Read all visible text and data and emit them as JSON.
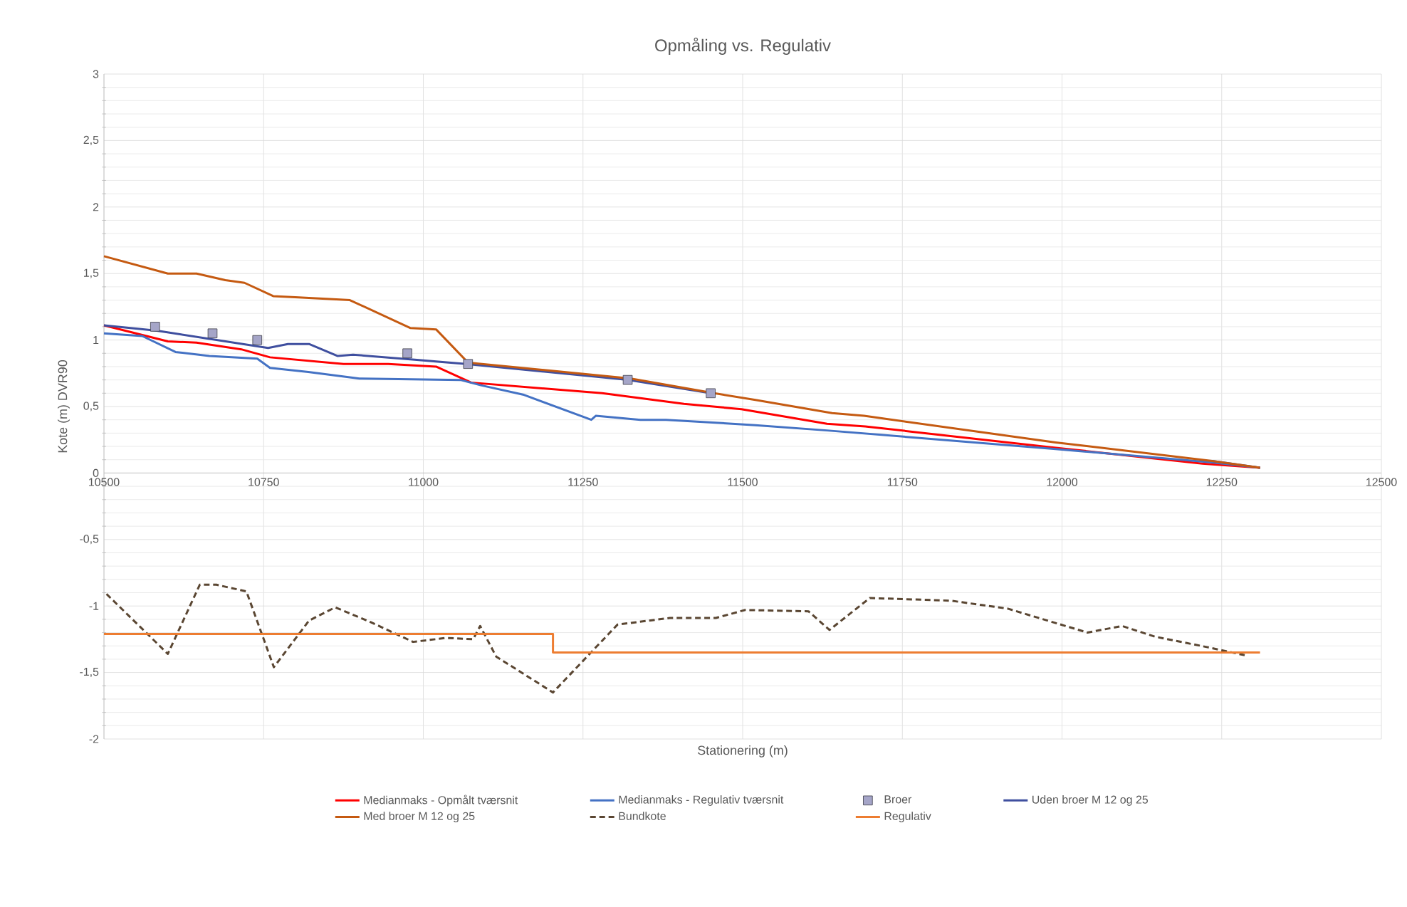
{
  "chart_data": {
    "type": "line",
    "title": "Opmåling vs. Regulativ",
    "xlabel": "Stationering (m)",
    "ylabel": "Kote (m) DVR90",
    "xlim": [
      10500,
      12500
    ],
    "xticks": [
      10500,
      10750,
      11000,
      11250,
      11500,
      11750,
      12000,
      12250,
      12500
    ],
    "ylim": [
      -2,
      3
    ],
    "yticks": [
      {
        "value": -2,
        "label": "-2"
      },
      {
        "value": -1.5,
        "label": "-1,5"
      },
      {
        "value": -1,
        "label": "-1"
      },
      {
        "value": -0.5,
        "label": "-0,5"
      },
      {
        "value": 0,
        "label": "0"
      },
      {
        "value": 0.5,
        "label": "0,5"
      },
      {
        "value": 1,
        "label": "1"
      },
      {
        "value": 1.5,
        "label": "1,5"
      },
      {
        "value": 2,
        "label": "2"
      },
      {
        "value": 2.5,
        "label": "2,5"
      },
      {
        "value": 3,
        "label": "3"
      }
    ],
    "grid": true,
    "legend": "bottom",
    "marker": "none",
    "line_style": "solid",
    "series": [
      {
        "name": "Medianmaks - Opmålt tværsnit",
        "color": "#ff0000",
        "x": [
          10500,
          10600,
          10645,
          10715,
          10760,
          10875,
          10945,
          11020,
          11075,
          11280,
          11408,
          11498,
          11632,
          11692,
          11990,
          12220,
          12310
        ],
        "values": [
          1.11,
          0.99,
          0.98,
          0.93,
          0.87,
          0.82,
          0.82,
          0.8,
          0.68,
          0.6,
          0.52,
          0.48,
          0.37,
          0.35,
          0.19,
          0.07,
          0.04
        ]
      },
      {
        "name": "Medianmaks - Regulativ tværsnit",
        "color": "#4472c4",
        "x": [
          10500,
          10560,
          10612,
          10665,
          10740,
          10760,
          10820,
          10900,
          11058,
          11090,
          11156,
          11263,
          11270,
          11340,
          11380,
          11520,
          11632,
          11990,
          12235,
          12310
        ],
        "values": [
          1.05,
          1.03,
          0.91,
          0.88,
          0.86,
          0.79,
          0.76,
          0.71,
          0.7,
          0.66,
          0.59,
          0.4,
          0.43,
          0.4,
          0.4,
          0.36,
          0.32,
          0.18,
          0.08,
          0.04
        ]
      },
      {
        "name": "Broer",
        "type": "scatter",
        "marker": "square",
        "color": "#a5a5c8",
        "x": [
          10580,
          10670,
          10740,
          10975,
          11070,
          11320,
          11450
        ],
        "values": [
          1.1,
          1.05,
          1.0,
          0.9,
          0.82,
          0.7,
          0.6
        ]
      },
      {
        "name": "Uden broer M 12 og 25",
        "color": "#3f4f9f",
        "x": [
          10500,
          10583,
          10757,
          10788,
          10821,
          10866,
          10890,
          10990,
          11067,
          11320,
          11450,
          11520,
          11640,
          11690,
          11990,
          12235,
          12310
        ],
        "values": [
          1.11,
          1.07,
          0.94,
          0.97,
          0.97,
          0.88,
          0.89,
          0.85,
          0.82,
          0.7,
          0.6,
          null,
          null,
          null,
          null,
          0.09,
          0.04
        ]
      },
      {
        "name": "Med broer M 12 og 25",
        "color": "#c55a11",
        "x": [
          10500,
          10600,
          10645,
          10690,
          10720,
          10765,
          10805,
          10885,
          10980,
          11020,
          11070,
          11325,
          11455,
          11520,
          11640,
          11690,
          11990,
          12235,
          12310
        ],
        "values": [
          1.63,
          1.5,
          1.5,
          1.45,
          1.43,
          1.33,
          1.32,
          1.3,
          1.09,
          1.08,
          0.83,
          0.71,
          0.6,
          0.55,
          0.45,
          0.43,
          0.23,
          0.09,
          0.04
        ]
      },
      {
        "name": "Bundkote",
        "color": "#5a4632",
        "line_style": "dashed",
        "x": [
          10504,
          10600,
          10650,
          10676,
          10723,
          10766,
          10821,
          10862,
          10917,
          10984,
          11036,
          11078,
          11089,
          11114,
          11203,
          11304,
          11386,
          11458,
          11504,
          11603,
          11636,
          11699,
          11826,
          11915,
          12040,
          12094,
          12145,
          12228,
          12286
        ],
        "values": [
          -0.91,
          -1.36,
          -0.84,
          -0.84,
          -0.89,
          -1.46,
          -1.11,
          -1.01,
          -1.12,
          -1.27,
          -1.24,
          -1.25,
          -1.15,
          -1.38,
          -1.65,
          -1.14,
          -1.09,
          -1.09,
          -1.03,
          -1.04,
          -1.18,
          -0.94,
          -0.96,
          -1.02,
          -1.2,
          -1.15,
          -1.23,
          -1.31,
          -1.37
        ]
      },
      {
        "name": "Regulativ",
        "color": "#ed7d31",
        "x": [
          10500,
          11203,
          11203,
          12310
        ],
        "values": [
          -1.21,
          -1.21,
          -1.35,
          -1.35
        ]
      }
    ]
  }
}
